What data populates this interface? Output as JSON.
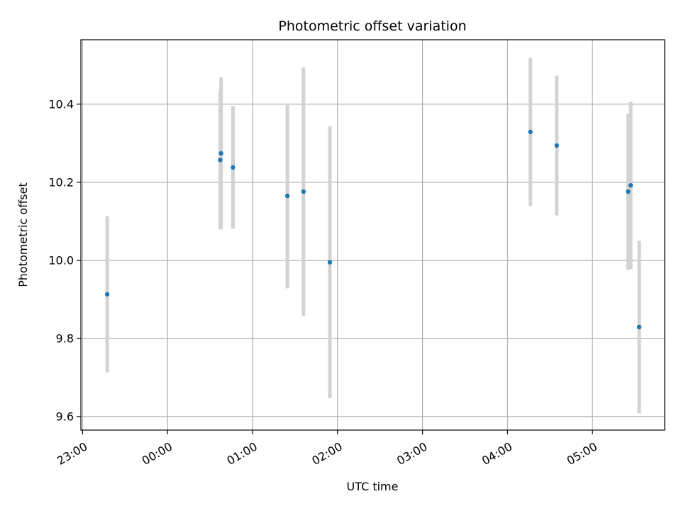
{
  "chart_data": {
    "type": "scatter",
    "title": "Photometric offset variation",
    "xlabel": "UTC time",
    "ylabel": "Photometric offset",
    "x_tick_labels": [
      "23:00",
      "00:00",
      "01:00",
      "02:00",
      "03:00",
      "04:00",
      "05:00"
    ],
    "x_ticks_hours": [
      -1,
      0,
      1,
      2,
      3,
      4,
      5
    ],
    "xlim_hours": [
      -1.02,
      5.85
    ],
    "y_ticks": [
      9.6,
      9.8,
      10.0,
      10.2,
      10.4
    ],
    "y_tick_labels": [
      "9.6",
      "9.8",
      "10.0",
      "10.2",
      "10.4"
    ],
    "ylim": [
      9.565,
      10.565
    ],
    "grid": true,
    "point_color": "#1f77b4",
    "errorbar_color": "#d3d3d3",
    "points": [
      {
        "time": "23:17",
        "x": -0.71,
        "y": 9.913,
        "yerr": 0.2
      },
      {
        "time": "00:37",
        "x": 0.63,
        "y": 10.274,
        "yerr": 0.195
      },
      {
        "time": "00:37",
        "x": 0.62,
        "y": 10.257,
        "yerr": 0.177
      },
      {
        "time": "00:46",
        "x": 0.77,
        "y": 10.238,
        "yerr": 0.157
      },
      {
        "time": "01:24",
        "x": 1.41,
        "y": 10.165,
        "yerr": 0.237
      },
      {
        "time": "01:36",
        "x": 1.6,
        "y": 10.176,
        "yerr": 0.318
      },
      {
        "time": "01:54",
        "x": 1.91,
        "y": 9.995,
        "yerr": 0.348
      },
      {
        "time": "04:16",
        "x": 4.27,
        "y": 10.329,
        "yerr": 0.19
      },
      {
        "time": "04:35",
        "x": 4.58,
        "y": 10.294,
        "yerr": 0.179
      },
      {
        "time": "05:25",
        "x": 5.42,
        "y": 10.176,
        "yerr": 0.2
      },
      {
        "time": "05:27",
        "x": 5.45,
        "y": 10.192,
        "yerr": 0.214
      },
      {
        "time": "05:33",
        "x": 5.55,
        "y": 9.829,
        "yerr": 0.221
      }
    ]
  }
}
